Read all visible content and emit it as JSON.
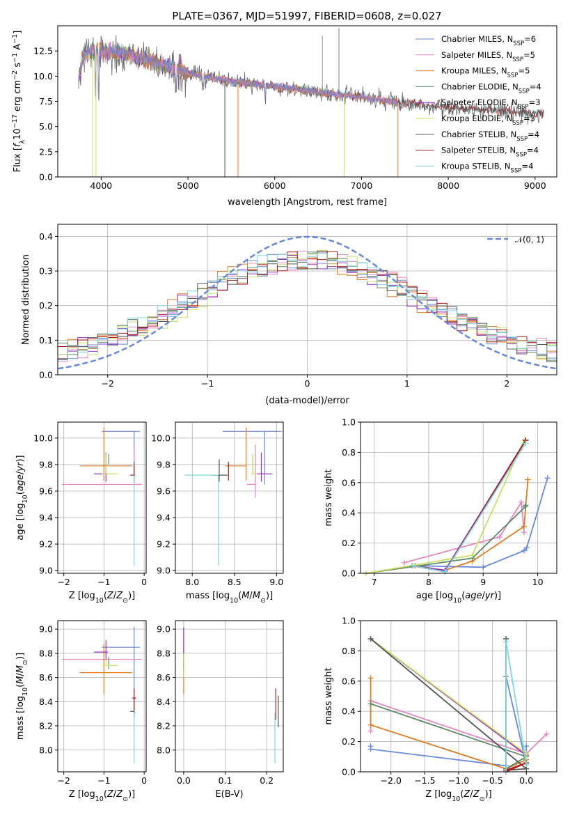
{
  "figure_title": "PLATE=0367, MJD=51997, FIBERID=0608, z=0.027",
  "colors": [
    "#6688dd",
    "#e884c0",
    "#e07a1e",
    "#5a8a64",
    "#9b2fc0",
    "#c8e060",
    "#555555",
    "#b01818",
    "#7ad6dc"
  ],
  "chart_data": [
    {
      "id": "spectrum",
      "type": "line",
      "title": "PLATE=0367, MJD=51997, FIBERID=0608, z=0.027",
      "xlabel": "wavelength [Angstrom, rest frame]",
      "ylabel": "Flux [f_λ 10^-17 erg cm^-2 s^-1 A^-1]",
      "xlim": [
        3500,
        9250
      ],
      "ylim": [
        0,
        15
      ],
      "xticks": [
        4000,
        5000,
        6000,
        7000,
        8000,
        9000
      ],
      "yticks": [
        0.0,
        2.5,
        5.0,
        7.5,
        10.0,
        12.5
      ],
      "legend_position": "top-right",
      "grid": false,
      "continuum": {
        "x": [
          3740,
          3800,
          3900,
          4000,
          4300,
          4700,
          5000,
          5500,
          6000,
          6500,
          7000,
          7400,
          7600,
          8000,
          8500,
          9100
        ],
        "y": [
          9.8,
          12.2,
          12.6,
          12.5,
          12.2,
          11.1,
          10.3,
          9.5,
          9.0,
          8.4,
          7.9,
          7.4,
          7.2,
          6.9,
          6.6,
          6.3
        ]
      },
      "series": [
        {
          "name": "Chabrier MILES, N_SSP=6",
          "sub": "SSP",
          "label": "Chabrier MILES, N",
          "suffix": "=6",
          "color": "#6688dd",
          "xmax": 7420
        },
        {
          "name": "Salpeter MILES, N_SSP=5",
          "sub": "SSP",
          "label": "Salpeter MILES, N",
          "suffix": "=5",
          "color": "#e884c0",
          "xmax": 7420
        },
        {
          "name": "Kroupa MILES, N_SSP=5",
          "sub": "SSP",
          "label": "Kroupa MILES, N",
          "suffix": "=5",
          "color": "#e07a1e",
          "xmax": 7420
        },
        {
          "name": "Chabrier ELODIE, N_SSP=4",
          "sub": "SSP",
          "label": "Chabrier ELODIE, N",
          "suffix": "=4",
          "color": "#5a8a64",
          "xmax": 6800
        },
        {
          "name": "Salpeter ELODIE, N_SSP=3",
          "sub": "SSP",
          "label": "Salpeter ELODIE, N",
          "suffix": "=3",
          "color": "#9b2fc0",
          "xmax": 6800
        },
        {
          "name": "Kroupa ELODIE, N_SSP=3",
          "sub": "SSP",
          "label": "Kroupa ELODIE, N",
          "suffix": "=3",
          "color": "#c8e060",
          "xmax": 6800
        },
        {
          "name": "Chabrier STELIB, N_SSP=4",
          "sub": "SSP",
          "label": "Chabrier STELIB, N",
          "suffix": "=4",
          "color": "#555555",
          "xmax": 9100
        },
        {
          "name": "Salpeter STELIB, N_SSP=4",
          "sub": "SSP",
          "label": "Salpeter STELIB, N",
          "suffix": "=4",
          "color": "#b01818",
          "xmax": 9100
        },
        {
          "name": "Kroupa STELIB, N_SSP=4",
          "sub": "SSP",
          "label": "Kroupa STELIB, N",
          "suffix": "=4",
          "color": "#7ad6dc",
          "xmax": 9100
        }
      ]
    },
    {
      "id": "residuals",
      "type": "step",
      "xlabel": "(data-model)/error",
      "ylabel": "Normed distribution",
      "xlim": [
        -2.5,
        2.5
      ],
      "ylim": [
        0,
        0.435
      ],
      "xticks": [
        -2,
        -1,
        0,
        1,
        2
      ],
      "xtick_labels": [
        "−2",
        "−1",
        "0",
        "1",
        "2"
      ],
      "yticks": [
        0.0,
        0.1,
        0.2,
        0.3,
        0.4
      ],
      "grid": true,
      "legend_position": "top-right",
      "reference_curve": {
        "name": "N(0,1)",
        "label": "𝒩(0, 1)",
        "mu": 0,
        "sigma": 1,
        "color": "#6688dd"
      },
      "bin_width": 0.1
    },
    {
      "id": "age-Z",
      "type": "errorbar",
      "xlabel": "Z [log10(Z/Z⊙)]",
      "ylabel": "age [log10(age/yr)]",
      "xlim": [
        -2.15,
        0.05
      ],
      "ylim": [
        8.98,
        10.12
      ],
      "xticks": [
        -2,
        -1,
        0
      ],
      "xtick_labels": [
        "−2",
        "−1",
        "0"
      ],
      "yticks": [
        9.0,
        9.2,
        9.4,
        9.6,
        9.8,
        10.0
      ],
      "grid": true,
      "points": [
        {
          "x": -0.25,
          "xerr": [
            0.8,
            0.15
          ],
          "y": 10.05,
          "yerr": [
            0.4,
            0.0
          ],
          "color": "#6688dd"
        },
        {
          "x": -0.25,
          "xerr": [
            1.8,
            0.2
          ],
          "y": 9.65,
          "yerr": [
            0.0,
            0.3
          ],
          "color": "#e884c0"
        },
        {
          "x": -1.0,
          "xerr": [
            0.6,
            0.7
          ],
          "y": 9.79,
          "yerr": [
            0.11,
            0.29
          ],
          "color": "#e07a1e"
        },
        {
          "x": -0.88,
          "xerr": [
            0.0,
            0.0
          ],
          "y": 9.8,
          "yerr": [
            0.0,
            0.08
          ],
          "color": "#5a8a64"
        },
        {
          "x": -0.95,
          "xerr": [
            0.3,
            0.05
          ],
          "y": 9.73,
          "yerr": [
            0.06,
            0.16
          ],
          "color": "#9b2fc0"
        },
        {
          "x": -0.95,
          "xerr": [
            0.1,
            0.3
          ],
          "y": 9.73,
          "yerr": [
            0.0,
            0.15
          ],
          "color": "#c8e060"
        },
        {
          "x": -0.25,
          "xerr": [
            0.1,
            0.0
          ],
          "y": 9.72,
          "yerr": [
            0.05,
            0.1
          ],
          "color": "#555555"
        },
        {
          "x": -0.25,
          "xerr": [
            0.05,
            0.05
          ],
          "y": 9.72,
          "yerr": [
            0.04,
            0.07
          ],
          "color": "#b01818"
        },
        {
          "x": -0.25,
          "xerr": [
            0.0,
            0.05
          ],
          "y": 9.72,
          "yerr": [
            0.68,
            0.0
          ],
          "color": "#7ad6dc"
        }
      ]
    },
    {
      "id": "age-mass",
      "type": "errorbar",
      "xlabel": "mass [log10(M/M⊙)]",
      "xlim": [
        7.8,
        9.08
      ],
      "ylim": [
        8.98,
        10.12
      ],
      "xticks": [
        8.0,
        8.5,
        9.0
      ],
      "yticks": [
        9.0,
        9.2,
        9.4,
        9.6,
        9.8,
        10.0
      ],
      "grid": true,
      "points": [
        {
          "x": 8.86,
          "xerr": [
            0.5,
            0.2
          ],
          "y": 10.05,
          "yerr": [
            0.4,
            0.0
          ],
          "color": "#6688dd"
        },
        {
          "x": 8.75,
          "xerr": [
            0.1,
            0.0
          ],
          "y": 9.65,
          "yerr": [
            0.1,
            0.3
          ],
          "color": "#e884c0"
        },
        {
          "x": 8.64,
          "xerr": [
            0.25,
            0.0
          ],
          "y": 9.79,
          "yerr": [
            0.11,
            0.29
          ],
          "color": "#e07a1e"
        },
        {
          "x": 8.72,
          "xerr": [
            0.0,
            0.0
          ],
          "y": 9.8,
          "yerr": [
            0.06,
            0.08
          ],
          "color": "#5a8a64"
        },
        {
          "x": 8.82,
          "xerr": [
            0.05,
            0.13
          ],
          "y": 9.73,
          "yerr": [
            0.06,
            0.16
          ],
          "color": "#9b2fc0"
        },
        {
          "x": 8.72,
          "xerr": [
            0.02,
            0.05
          ],
          "y": 9.73,
          "yerr": [
            0.0,
            0.15
          ],
          "color": "#c8e060"
        },
        {
          "x": 8.32,
          "xerr": [
            0.1,
            0.1
          ],
          "y": 9.72,
          "yerr": [
            0.05,
            0.12
          ],
          "color": "#555555"
        },
        {
          "x": 8.43,
          "xerr": [
            0.0,
            0.0
          ],
          "y": 9.72,
          "yerr": [
            0.04,
            0.1
          ],
          "color": "#b01818"
        },
        {
          "x": 8.31,
          "xerr": [
            0.4,
            0.0
          ],
          "y": 9.72,
          "yerr": [
            0.68,
            0.0
          ],
          "color": "#7ad6dc"
        }
      ]
    },
    {
      "id": "mass-weight-age",
      "type": "line",
      "xlabel": "age [log10(age/yr)]",
      "ylabel": "mass weight",
      "xlim": [
        6.75,
        10.35
      ],
      "ylim": [
        0,
        1.0
      ],
      "xticks": [
        7,
        8,
        9,
        10
      ],
      "yticks": [
        0.0,
        0.2,
        0.4,
        0.6,
        0.8,
        1.0
      ],
      "grid": true,
      "series": [
        {
          "color": "#6688dd",
          "x": [
            7.75,
            9.0,
            9.75,
            9.8,
            10.18
          ],
          "y": [
            0.05,
            0.04,
            0.15,
            0.17,
            0.63
          ]
        },
        {
          "color": "#e884c0",
          "x": [
            7.55,
            9.3,
            9.7,
            9.75
          ],
          "y": [
            0.07,
            0.24,
            0.47,
            0.27
          ]
        },
        {
          "color": "#e07a1e",
          "x": [
            7.75,
            8.3,
            8.8,
            9.75,
            9.82
          ],
          "y": [
            0.05,
            0.02,
            0.08,
            0.31,
            0.62
          ]
        },
        {
          "color": "#5a8a64",
          "x": [
            6.85,
            8.8,
            9.77,
            9.78
          ],
          "y": [
            0.0,
            0.1,
            0.44,
            0.45
          ]
        },
        {
          "color": "#9b2fc0",
          "x": [
            7.7,
            8.3,
            9.78
          ],
          "y": [
            0.05,
            0.02,
            0.88
          ]
        },
        {
          "color": "#c8e060",
          "x": [
            6.85,
            8.8,
            9.75
          ],
          "y": [
            0.0,
            0.12,
            0.88
          ]
        },
        {
          "color": "#555555",
          "x": [
            7.7,
            8.3,
            9.78
          ],
          "y": [
            0.05,
            0.01,
            0.88
          ]
        },
        {
          "color": "#b01818",
          "x": [
            7.7,
            8.3,
            9.78
          ],
          "y": [
            0.05,
            0.01,
            0.88
          ]
        },
        {
          "color": "#7ad6dc",
          "x": [
            7.7,
            8.3,
            9.78
          ],
          "y": [
            0.05,
            0.01,
            0.86
          ]
        }
      ]
    },
    {
      "id": "mass-Z",
      "type": "errorbar",
      "xlabel": "Z [log10(Z/Z⊙)]",
      "ylabel": "mass [log10(M/M⊙)]",
      "xlim": [
        -2.15,
        0.05
      ],
      "ylim": [
        7.82,
        9.07
      ],
      "xticks": [
        -2,
        -1,
        0
      ],
      "xtick_labels": [
        "−2",
        "−1",
        "0"
      ],
      "yticks": [
        8.0,
        8.2,
        8.4,
        8.6,
        8.8,
        9.0
      ],
      "grid": true,
      "points": [
        {
          "x": -0.25,
          "xerr": [
            0.8,
            0.15
          ],
          "y": 8.85,
          "yerr": [
            0.45,
            0.17
          ],
          "color": "#6688dd"
        },
        {
          "x": -0.25,
          "xerr": [
            1.8,
            0.2
          ],
          "y": 8.75,
          "yerr": [
            0.0,
            0.0
          ],
          "color": "#e884c0"
        },
        {
          "x": -1.0,
          "xerr": [
            0.6,
            0.7
          ],
          "y": 8.64,
          "yerr": [
            0.18,
            0.24
          ],
          "color": "#e07a1e"
        },
        {
          "x": -0.88,
          "xerr": [
            0.0,
            0.0
          ],
          "y": 8.72,
          "yerr": [
            0.05,
            0.05
          ],
          "color": "#5a8a64"
        },
        {
          "x": -0.95,
          "xerr": [
            0.3,
            0.05
          ],
          "y": 8.81,
          "yerr": [
            0.07,
            0.1
          ],
          "color": "#9b2fc0"
        },
        {
          "x": -0.95,
          "xerr": [
            0.1,
            0.3
          ],
          "y": 8.7,
          "yerr": [
            0.0,
            0.05
          ],
          "color": "#c8e060"
        },
        {
          "x": -0.25,
          "xerr": [
            0.1,
            0.0
          ],
          "y": 8.32,
          "yerr": [
            0.05,
            0.12
          ],
          "color": "#555555"
        },
        {
          "x": -0.25,
          "xerr": [
            0.05,
            0.05
          ],
          "y": 8.43,
          "yerr": [
            0.1,
            0.08
          ],
          "color": "#b01818"
        },
        {
          "x": -0.25,
          "xerr": [
            0.0,
            0.05
          ],
          "y": 8.31,
          "yerr": [
            0.42,
            0.0
          ],
          "color": "#7ad6dc"
        }
      ]
    },
    {
      "id": "mass-ebv",
      "type": "errorbar",
      "xlabel": "E(B-V)",
      "xlim": [
        -0.02,
        0.24
      ],
      "ylim": [
        7.82,
        9.07
      ],
      "xticks": [
        0.0,
        0.1,
        0.2
      ],
      "yticks": [
        8.0,
        8.2,
        8.4,
        8.6,
        8.8,
        9.0
      ],
      "grid": true,
      "points": [
        {
          "x": 0.0,
          "xerr": [
            0,
            0
          ],
          "y": 8.85,
          "yerr": [
            0.2,
            0.17
          ],
          "color": "#6688dd"
        },
        {
          "x": 0.0,
          "xerr": [
            0,
            0
          ],
          "y": 8.75,
          "yerr": [
            0.1,
            0.1
          ],
          "color": "#e884c0"
        },
        {
          "x": 0.0,
          "xerr": [
            0,
            0
          ],
          "y": 8.64,
          "yerr": [
            0.18,
            0.1
          ],
          "color": "#e07a1e"
        },
        {
          "x": 0.0,
          "xerr": [
            0,
            0
          ],
          "y": 8.72,
          "yerr": [
            0.1,
            0.1
          ],
          "color": "#5a8a64"
        },
        {
          "x": 0.0,
          "xerr": [
            0,
            0
          ],
          "y": 8.81,
          "yerr": [
            0.15,
            0.2
          ],
          "color": "#9b2fc0"
        },
        {
          "x": 0.0,
          "xerr": [
            0,
            0
          ],
          "y": 8.7,
          "yerr": [
            0.1,
            0.1
          ],
          "color": "#c8e060"
        },
        {
          "x": 0.228,
          "xerr": [
            0,
            0
          ],
          "y": 8.32,
          "yerr": [
            0.13,
            0.13
          ],
          "color": "#555555"
        },
        {
          "x": 0.222,
          "xerr": [
            0,
            0
          ],
          "y": 8.43,
          "yerr": [
            0.18,
            0.08
          ],
          "color": "#b01818"
        },
        {
          "x": 0.22,
          "xerr": [
            0,
            0
          ],
          "y": 8.31,
          "yerr": [
            0.42,
            0.0
          ],
          "color": "#7ad6dc"
        }
      ]
    },
    {
      "id": "mass-weight-Z",
      "type": "line",
      "xlabel": "Z [log10(Z/Z⊙)]",
      "ylabel": "mass weight",
      "xlim": [
        -2.45,
        0.45
      ],
      "ylim": [
        0,
        1.0
      ],
      "xticks": [
        -2.0,
        -1.5,
        -1.0,
        -0.5,
        0.0
      ],
      "xtick_labels": [
        "−2.0",
        "−1.5",
        "−1.0",
        "−0.5",
        "0.0"
      ],
      "yticks": [
        0.0,
        0.2,
        0.4,
        0.6,
        0.8,
        1.0
      ],
      "grid": true,
      "series": [
        {
          "color": "#6688dd",
          "x": [
            -2.3,
            -2.3,
            -0.3,
            -0.3,
            0.0,
            0.0
          ],
          "y": [
            0.17,
            0.15,
            0.04,
            0.63,
            0.05,
            0.17
          ]
        },
        {
          "color": "#e884c0",
          "x": [
            -2.3,
            -2.3,
            0.0,
            0.3
          ],
          "y": [
            0.27,
            0.47,
            0.12,
            0.25
          ]
        },
        {
          "color": "#e07a1e",
          "x": [
            -2.3,
            -2.3,
            -0.3,
            0.0,
            0.0
          ],
          "y": [
            0.62,
            0.31,
            0.02,
            0.08,
            0.05
          ]
        },
        {
          "color": "#5a8a64",
          "x": [
            -2.3,
            0.0,
            -0.3,
            -0.3
          ],
          "y": [
            0.45,
            0.1,
            0.02,
            0.88
          ]
        },
        {
          "color": "#9b2fc0",
          "x": [
            -2.3,
            0.0,
            0.0
          ],
          "y": [
            0.88,
            0.11,
            0.02
          ]
        },
        {
          "color": "#c8e060",
          "x": [
            -2.3,
            0.0,
            0.0
          ],
          "y": [
            0.88,
            0.12,
            0.02
          ]
        },
        {
          "color": "#555555",
          "x": [
            -2.3,
            0.0,
            -0.3,
            -0.3
          ],
          "y": [
            0.88,
            0.02,
            0.01,
            0.88
          ]
        },
        {
          "color": "#b01818",
          "x": [
            -0.3,
            0.0,
            -0.3
          ],
          "y": [
            0.01,
            0.06,
            0.0
          ]
        },
        {
          "color": "#7ad6dc",
          "x": [
            -0.3,
            -0.3,
            0.0
          ],
          "y": [
            0.0,
            0.86,
            0.05
          ]
        }
      ]
    }
  ]
}
